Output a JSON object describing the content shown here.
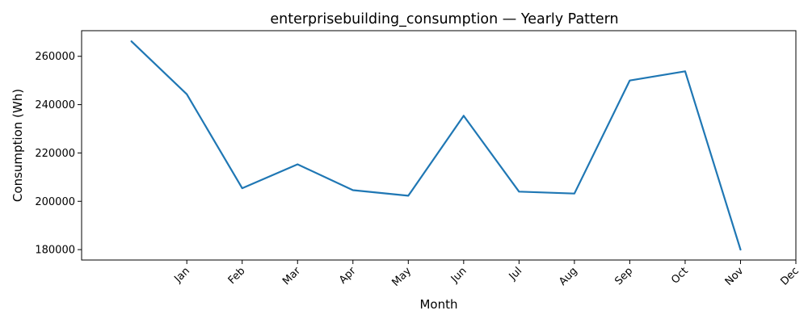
{
  "chart_data": {
    "type": "line",
    "title": "enterprisebuilding_consumption — Yearly Pattern",
    "xlabel": "Month",
    "ylabel": "Consumption (Wh)",
    "x_tick_labels": [
      "Jan",
      "Feb",
      "Mar",
      "Apr",
      "May",
      "Jun",
      "Jul",
      "Aug",
      "Sep",
      "Oct",
      "Nov",
      "Dec"
    ],
    "y_ticks": [
      180000,
      200000,
      220000,
      240000,
      260000
    ],
    "x_range": [
      -0.9,
      12.0
    ],
    "ylim": [
      175700,
      270600
    ],
    "grid": false,
    "legend": "none",
    "color": "#1f77b4",
    "series": [
      {
        "x": [
          0,
          1,
          2,
          3,
          4,
          5,
          6,
          7,
          8,
          9,
          10,
          11
        ],
        "values": [
          266200,
          244300,
          205400,
          215300,
          204600,
          202300,
          235400,
          204000,
          203200,
          250000,
          253800,
          180000
        ]
      }
    ]
  }
}
